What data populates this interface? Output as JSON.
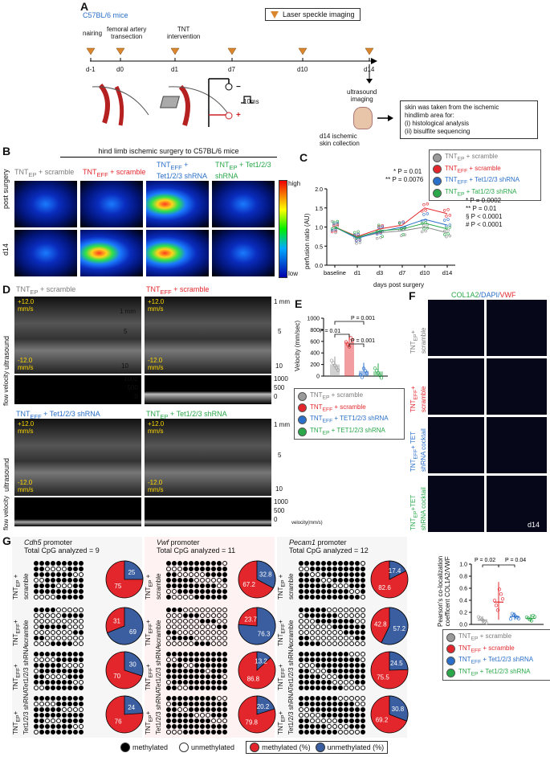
{
  "panelA": {
    "letter": "A",
    "mouse": "C57BL/6 mice",
    "legend": "Laser speckle imaging",
    "events": [
      "nairing",
      "femoral artery\ntransection",
      "TNT\nintervention"
    ],
    "days": [
      "d-1",
      "d0",
      "d1",
      "d7",
      "d10",
      "d14"
    ],
    "pulse": "10ms",
    "minus": "−",
    "plus": "+",
    "ultrasound": "ultrasound\nimaging",
    "collection": "d14 ischemic\nskin collection",
    "note": "skin was taken from the ischemic\nhindlimb area for:\n(i) histological analysis\n(ii) bisulfite sequencing"
  },
  "panelB": {
    "letter": "B",
    "title": "hind limb ischemic surgery to C57BL/6 mice",
    "rows": [
      "post surgery",
      "d14"
    ],
    "cols": [
      {
        "main": "TNT",
        "sub": "EP",
        "rest": " + scramble",
        "color": "#7a7a7a"
      },
      {
        "main": "TNT",
        "sub": "EFF",
        "rest": " + scramble",
        "color": "#e3262b"
      },
      {
        "main": "TNT",
        "sub": "EFF",
        "rest": " +\nTet1/2/3 shRNA",
        "color": "#2a6fc9"
      },
      {
        "main": "TNT",
        "sub": "EP",
        "rest": " + Tet1/2/3\nshRNA",
        "color": "#2aa84a"
      }
    ],
    "scale_high": "high",
    "scale_low": "low"
  },
  "panelC": {
    "letter": "C",
    "ylabel": "perfusion ratio (AU)",
    "xlabel": "days post surgery",
    "yticks": [
      "0.0",
      "0.5",
      "1.0",
      "1.5",
      "2.0"
    ],
    "xticks": [
      "baseline",
      "d1",
      "d3",
      "d7",
      "d10",
      "d14"
    ],
    "annot1": "* P = 0.01",
    "annot2": "** P = 0.0076",
    "stats": [
      "* P = 0.0002",
      "** P = 0.01",
      "§ P < 0.0001",
      "# P < 0.0001"
    ],
    "legend": [
      {
        "main": "TNT",
        "sub": "EP",
        "rest": " + scramble",
        "color": "#9a9a9a"
      },
      {
        "main": "TNT",
        "sub": "EFF",
        "rest": " + scramble",
        "color": "#e3262b"
      },
      {
        "main": "TNT",
        "sub": "EFF",
        "rest": " + Tet1/2/3 shRNA",
        "color": "#2a6fc9"
      },
      {
        "main": "TNT",
        "sub": "EP",
        "rest": " + Tat1/2/3 shRNA",
        "color": "#2aa84a"
      }
    ]
  },
  "panelD": {
    "letter": "D",
    "cols": [
      {
        "main": "TNT",
        "sub": "EP",
        "rest": " + scramble",
        "color": "#7a7a7a"
      },
      {
        "main": "TNT",
        "sub": "EFF",
        "rest": " + scramble",
        "color": "#e3262b"
      },
      {
        "main": "TNT",
        "sub": "EFF",
        "rest": " + Tet1/2/3 shRNA",
        "color": "#2a6fc9"
      },
      {
        "main": "TNT",
        "sub": "EP",
        "rest": " + Tet1/2/3 shRNA",
        "color": "#2aa84a"
      }
    ],
    "vel_top": "+12.0\nmm/s",
    "vel_bot": "-12.0\nmm/s",
    "depth": [
      "1 mm",
      "5",
      "10"
    ],
    "fv_ticks": [
      "1000",
      "500",
      "0"
    ],
    "row_us": "ultrasound",
    "row_fv": "flow velocity",
    "vel_unit": "velocity(mm/s)"
  },
  "panelE": {
    "letter": "E",
    "ylabel": "Velocity (mm/sec)",
    "yticks": [
      "0",
      "200",
      "400",
      "600",
      "800",
      "1000"
    ],
    "p1": "P = 0.001",
    "p2": "P = 0.01",
    "p3": "P = 0.001",
    "legend": [
      {
        "main": "TNT",
        "sub": "EP",
        "rest": " + scramble",
        "color": "#9a9a9a"
      },
      {
        "main": "TNT",
        "sub": "EFF",
        "rest": " + scramble",
        "color": "#e3262b"
      },
      {
        "main": "TNT",
        "sub": "EFF",
        "rest": " + TET1/2/3 shRNA",
        "color": "#2a6fc9"
      },
      {
        "main": "TNT",
        "sub": "EP",
        "rest": " + TET1/2/3 shRNA",
        "color": "#2aa84a"
      }
    ]
  },
  "panelF": {
    "letter": "F",
    "title_col": "COL1A2",
    "title_dapi": "/DAPI/",
    "title_vwf": "VWF",
    "rows": [
      {
        "main": "TNT",
        "sub": "EP",
        "rest": "+\nscramble",
        "color": "#7a7a7a"
      },
      {
        "main": "TNT",
        "sub": "EFF",
        "rest": "+\nscramble",
        "color": "#e3262b"
      },
      {
        "main": "TNT",
        "sub": "EFF",
        "rest": "+ TET\nshRNA cocktail",
        "color": "#2a6fc9"
      },
      {
        "main": "TNT",
        "sub": "EP",
        "rest": "+TET\nshRNA cocktail",
        "color": "#2aa84a"
      }
    ],
    "day": "d14",
    "ylabel": "Pearson's co-localization\ncoefficent COL1A2/VWF",
    "yticks": [
      "0.0",
      "0.2",
      "0.4",
      "0.6",
      "0.8",
      "1.0"
    ],
    "p1": "P = 0.02",
    "p2": "P = 0.04",
    "legend": [
      {
        "main": "TNT",
        "sub": "EP",
        "rest": " + scramble",
        "color": "#9a9a9a"
      },
      {
        "main": "TNT",
        "sub": "EFF",
        "rest": " + scramble",
        "color": "#e3262b"
      },
      {
        "main": "TNT",
        "sub": "EFF",
        "rest": " + Tet1/2/3 shRNA",
        "color": "#2a6fc9"
      },
      {
        "main": "TNT",
        "sub": "EP",
        "rest": " + Tet1/2/3 shRNA",
        "color": "#2aa84a"
      }
    ]
  },
  "panelG": {
    "letter": "G",
    "groups": [
      {
        "gene": "Cdh5",
        "title": " promoter",
        "cpg": "Total CpG analyzed = 9",
        "pies": [
          [
            25,
            75
          ],
          [
            69,
            31
          ],
          [
            30,
            70
          ],
          [
            24,
            76
          ]
        ]
      },
      {
        "gene": "Vwf",
        "title": " promoter",
        "cpg": "Total CpG analyzed = 11",
        "pies": [
          [
            32.8,
            67.2
          ],
          [
            76.3,
            23.7
          ],
          [
            13.2,
            86.8
          ],
          [
            20.2,
            79.8
          ]
        ]
      },
      {
        "gene": "Pecam1",
        "title": " promoter",
        "cpg": "Total CpG analyzed = 12",
        "pies": [
          [
            17.4,
            82.6
          ],
          [
            57.2,
            42.8
          ],
          [
            24.5,
            75.5
          ],
          [
            30.8,
            69.2
          ]
        ]
      }
    ],
    "rowlabels": [
      {
        "main": "TNT",
        "sub": "EP",
        "rest": " +\nscramble"
      },
      {
        "main": "TNT",
        "sub": "EFF",
        "rest": "+\nscramble"
      },
      {
        "main": "TNT",
        "sub": "EFF",
        "rest": "+\nTet1/2/3 shRNA"
      },
      {
        "main": "TNT",
        "sub": "EP",
        "rest": "+\nTet1/2/3 shRNA"
      }
    ],
    "leg_meth": "methylated",
    "leg_unmeth": "unmethylated",
    "leg_meth_pct": "methylated (%)",
    "leg_unmeth_pct": "unmethylated (%)"
  },
  "chart_data": [
    {
      "type": "line",
      "panel": "C",
      "x": [
        "baseline",
        "d1",
        "d3",
        "d7",
        "d10",
        "d14"
      ],
      "ylabel": "perfusion ratio (AU)",
      "xlabel": "days post surgery",
      "ylim": [
        0,
        2.0
      ],
      "series": [
        {
          "name": "TNTEP + scramble",
          "values": [
            1.0,
            0.72,
            0.85,
            0.9,
            1.0,
            0.85
          ]
        },
        {
          "name": "TNTEFF + scramble",
          "values": [
            1.0,
            0.75,
            0.95,
            1.05,
            1.5,
            1.35
          ]
        },
        {
          "name": "TNTEFF + Tet1/2/3 shRNA",
          "values": [
            1.0,
            0.7,
            0.88,
            1.0,
            1.2,
            1.05
          ]
        },
        {
          "name": "TNTEP + Tat1/2/3 shRNA",
          "values": [
            1.0,
            0.73,
            0.9,
            0.95,
            1.1,
            0.95
          ]
        }
      ]
    },
    {
      "type": "bar",
      "panel": "E",
      "categories": [
        "TNTEP + scramble",
        "TNTEFF + scramble",
        "TNTEFF + TET1/2/3 shRNA",
        "TNTEP + TET1/2/3 shRNA"
      ],
      "values": [
        200,
        590,
        90,
        80
      ],
      "ylabel": "Velocity (mm/sec)",
      "ylim": [
        0,
        1000
      ]
    },
    {
      "type": "bar",
      "panel": "F",
      "categories": [
        "TNTEP + scramble",
        "TNTEFF + scramble",
        "TNTEFF + Tet1/2/3 shRNA",
        "TNTEP + Tet1/2/3 shRNA"
      ],
      "values": [
        0.07,
        0.37,
        0.13,
        0.1
      ],
      "ylabel": "Pearson's co-localization coefficent COL1A2/VWF",
      "ylim": [
        0,
        1.0
      ]
    },
    {
      "type": "pie",
      "panel": "G",
      "note_fields": [
        "unmethylated",
        "methylated"
      ],
      "groups": [
        "Cdh5",
        "Vwf",
        "Pecam1"
      ],
      "values": [
        [
          [
            25,
            75
          ],
          [
            69,
            31
          ],
          [
            30,
            70
          ],
          [
            24,
            76
          ]
        ],
        [
          [
            32.8,
            67.2
          ],
          [
            76.3,
            23.7
          ],
          [
            13.2,
            86.8
          ],
          [
            20.2,
            79.8
          ]
        ],
        [
          [
            17.4,
            82.6
          ],
          [
            57.2,
            42.8
          ],
          [
            24.5,
            75.5
          ],
          [
            30.8,
            69.2
          ]
        ]
      ]
    }
  ]
}
